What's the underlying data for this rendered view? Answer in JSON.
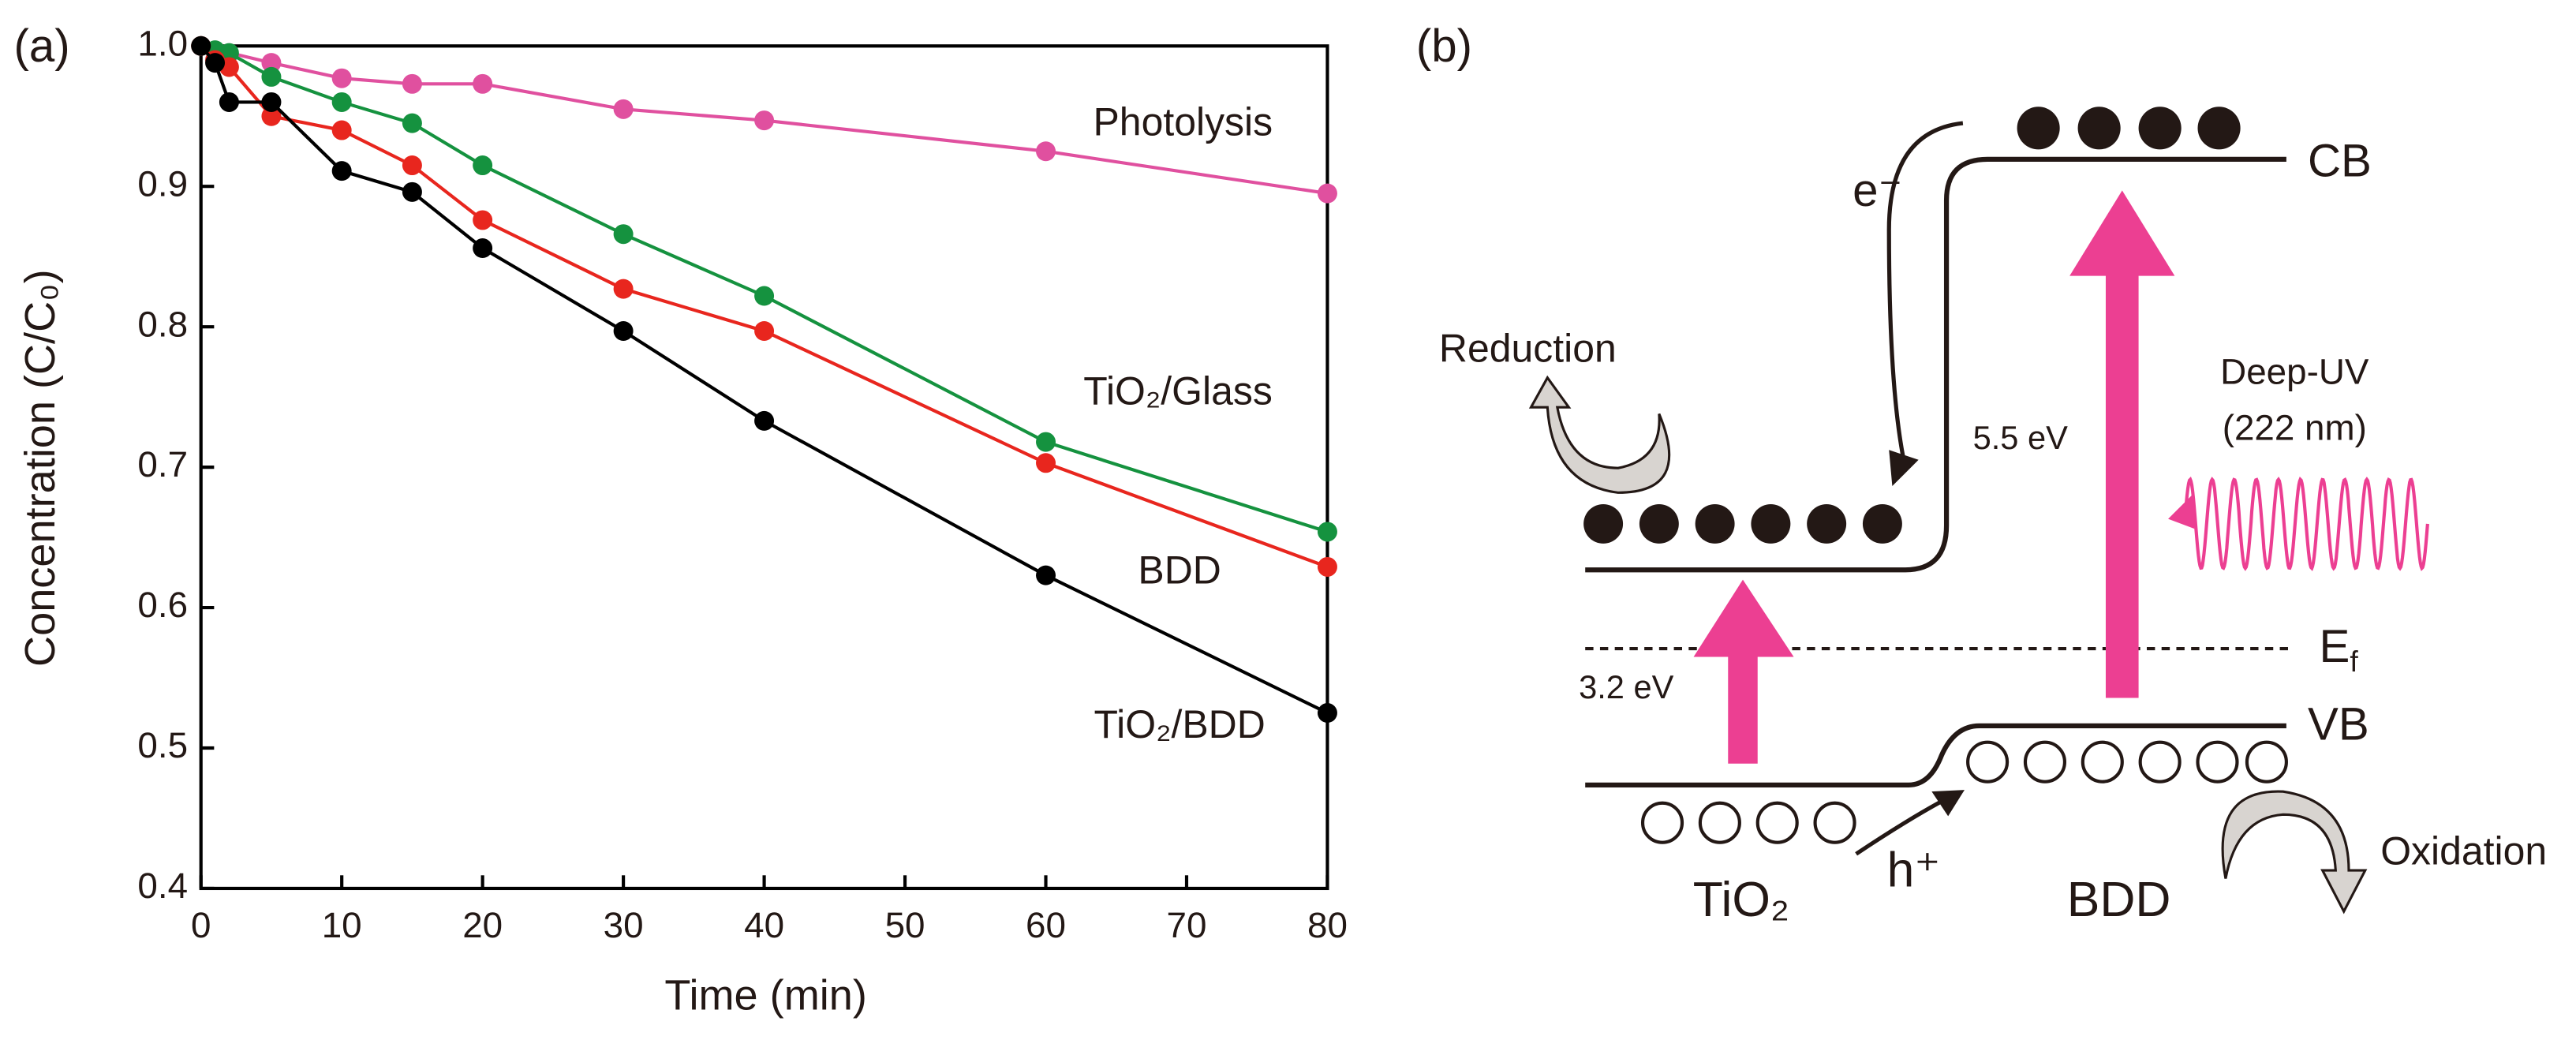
{
  "panel_a": "(a)",
  "chart_data": {
    "type": "line",
    "xlabel": "Time (min)",
    "ylabel": "Concentration (C/C₀)",
    "xlim": [
      0,
      80
    ],
    "xticks": [
      0,
      10,
      20,
      30,
      40,
      50,
      60,
      70,
      80
    ],
    "ylim": [
      0.4,
      1.0
    ],
    "yticks": [
      0.4,
      0.5,
      0.6,
      0.7,
      0.8,
      0.9,
      {
        "value": 1.0,
        "label": "1.0"
      }
    ],
    "series": [
      {
        "name": "Photolysis",
        "color": "#e0509f",
        "x": [
          0,
          5,
          10,
          15,
          20,
          30,
          40,
          60,
          80
        ],
        "values": [
          1.0,
          0.988,
          0.977,
          0.973,
          0.973,
          0.955,
          0.947,
          0.925,
          0.895
        ]
      },
      {
        "name": "TiO₂/Glass",
        "color": "#15923f",
        "x": [
          0,
          1,
          2,
          5,
          10,
          15,
          20,
          30,
          40,
          60,
          80
        ],
        "values": [
          1.0,
          0.997,
          0.995,
          0.978,
          0.96,
          0.945,
          0.915,
          0.866,
          0.822,
          0.718,
          0.654
        ]
      },
      {
        "name": "BDD",
        "color": "#e8261e",
        "x": [
          0,
          1,
          2,
          5,
          10,
          15,
          20,
          30,
          40,
          60,
          80
        ],
        "values": [
          1.0,
          0.99,
          0.985,
          0.95,
          0.94,
          0.915,
          0.876,
          0.827,
          0.797,
          0.703,
          0.629
        ]
      },
      {
        "name": "TiO₂/BDD",
        "color": "#000000",
        "x": [
          0,
          1,
          2,
          5,
          10,
          15,
          20,
          30,
          40,
          60,
          80
        ],
        "values": [
          1.0,
          0.988,
          0.96,
          0.96,
          0.911,
          0.896,
          0.856,
          0.797,
          0.733,
          0.623,
          0.525
        ]
      }
    ]
  },
  "diagram": {
    "panel": "(b)",
    "reduction": "Reduction",
    "electron": "e⁻",
    "gap_bdd": "5.5 eV",
    "cb": "CB",
    "light": "Deep-UV",
    "wavelength": "(222 nm)",
    "ef": {
      "main": "E",
      "sub": "f"
    },
    "gap_tio2": "3.2 eV",
    "vb": "VB",
    "hole": "h⁺",
    "tio2": "TiO₂",
    "bdd": "BDD",
    "oxidation": "Oxidation"
  }
}
